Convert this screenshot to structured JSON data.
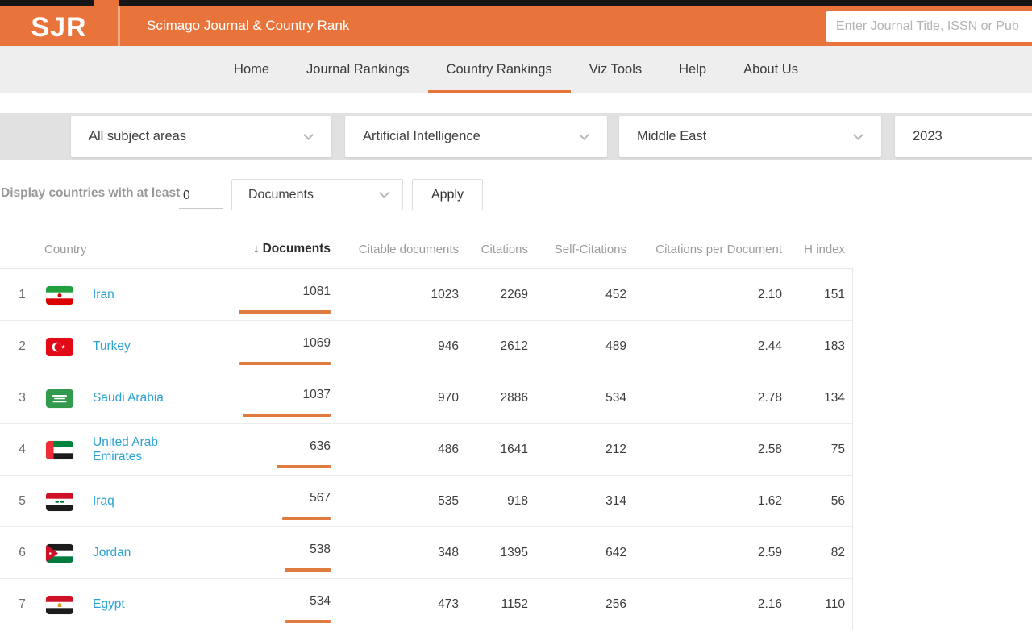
{
  "header": {
    "logo": "SJR",
    "title": "Scimago Journal & Country Rank",
    "search_placeholder": "Enter Journal Title, ISSN or Pub"
  },
  "nav": {
    "items": [
      {
        "label": "Home",
        "active": false
      },
      {
        "label": "Journal Rankings",
        "active": false
      },
      {
        "label": "Country Rankings",
        "active": true
      },
      {
        "label": "Viz Tools",
        "active": false
      },
      {
        "label": "Help",
        "active": false
      },
      {
        "label": "About Us",
        "active": false
      }
    ]
  },
  "filters": {
    "subject_area": "All subject areas",
    "subject_category": "Artificial Intelligence",
    "region": "Middle East",
    "year": "2023"
  },
  "threshold": {
    "label": "Display countries with at least",
    "value": "0",
    "metric": "Documents",
    "apply_label": "Apply"
  },
  "icons": {
    "sort_descending": "↓"
  },
  "table": {
    "sorted_by": "Documents",
    "header": {
      "country": "Country",
      "documents": "Documents",
      "citable_documents": "Citable documents",
      "citations": "Citations",
      "self_citations": "Self-Citations",
      "citations_per_document": "Citations per Document",
      "h_index": "H index"
    },
    "rows": [
      {
        "rank": 1,
        "flag": "iran",
        "country": "Iran",
        "documents": 1081,
        "citable_documents": 1023,
        "citations": 2269,
        "self_citations": 452,
        "citations_per_document": "2.10",
        "h_index": 151
      },
      {
        "rank": 2,
        "flag": "turkey",
        "country": "Turkey",
        "documents": 1069,
        "citable_documents": 946,
        "citations": 2612,
        "self_citations": 489,
        "citations_per_document": "2.44",
        "h_index": 183
      },
      {
        "rank": 3,
        "flag": "saudi-arabia",
        "country": "Saudi Arabia",
        "documents": 1037,
        "citable_documents": 970,
        "citations": 2886,
        "self_citations": 534,
        "citations_per_document": "2.78",
        "h_index": 134
      },
      {
        "rank": 4,
        "flag": "united-arab-emirates",
        "country": "United Arab Emirates",
        "documents": 636,
        "citable_documents": 486,
        "citations": 1641,
        "self_citations": 212,
        "citations_per_document": "2.58",
        "h_index": 75
      },
      {
        "rank": 5,
        "flag": "iraq",
        "country": "Iraq",
        "documents": 567,
        "citable_documents": 535,
        "citations": 918,
        "self_citations": 314,
        "citations_per_document": "1.62",
        "h_index": 56
      },
      {
        "rank": 6,
        "flag": "jordan",
        "country": "Jordan",
        "documents": 538,
        "citable_documents": 348,
        "citations": 1395,
        "self_citations": 642,
        "citations_per_document": "2.59",
        "h_index": 82
      },
      {
        "rank": 7,
        "flag": "egypt",
        "country": "Egypt",
        "documents": 534,
        "citable_documents": 473,
        "citations": 1152,
        "self_citations": 256,
        "citations_per_document": "2.16",
        "h_index": 110
      }
    ]
  },
  "colors": {
    "accent": "#e8743c",
    "link": "#2aa3d4",
    "bar": "#e07b3f"
  }
}
